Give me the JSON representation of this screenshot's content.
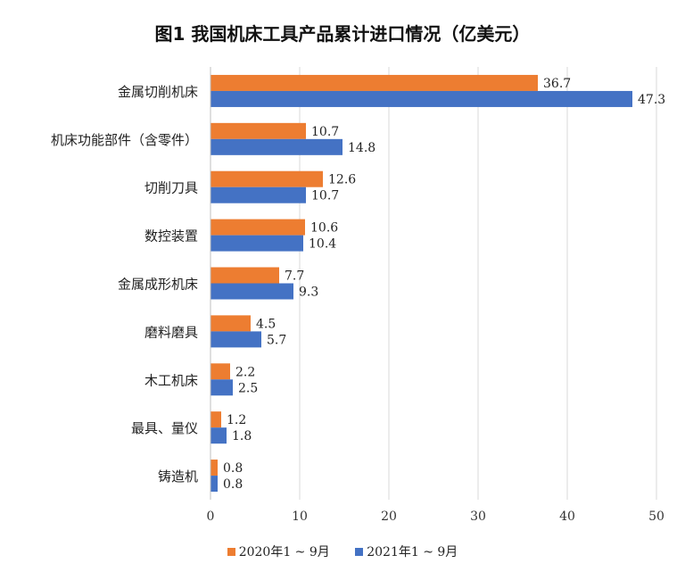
{
  "chart_data": {
    "type": "bar",
    "orientation": "horizontal",
    "title": "图1  我国机床工具产品累计进口情况（亿美元）",
    "categories": [
      "金属切削机床",
      "机床功能部件（含零件）",
      "切削刀具",
      "数控装置",
      "金属成形机床",
      "磨料磨具",
      "木工机床",
      "最具、量仪",
      "铸造机"
    ],
    "series": [
      {
        "name": "2020年1 ~ 9月",
        "color": "#ED7D31",
        "values": [
          36.7,
          10.7,
          12.6,
          10.6,
          7.7,
          4.5,
          2.2,
          1.2,
          0.8
        ]
      },
      {
        "name": "2021年1 ~ 9月",
        "color": "#4472C4",
        "values": [
          47.3,
          14.8,
          10.7,
          10.4,
          9.3,
          5.7,
          2.5,
          1.8,
          0.8
        ]
      }
    ],
    "xlim": [
      0,
      50
    ],
    "xticks": [
      "0",
      "10",
      "20",
      "30",
      "40",
      "50"
    ],
    "grid": true,
    "legend_position": "bottom"
  }
}
